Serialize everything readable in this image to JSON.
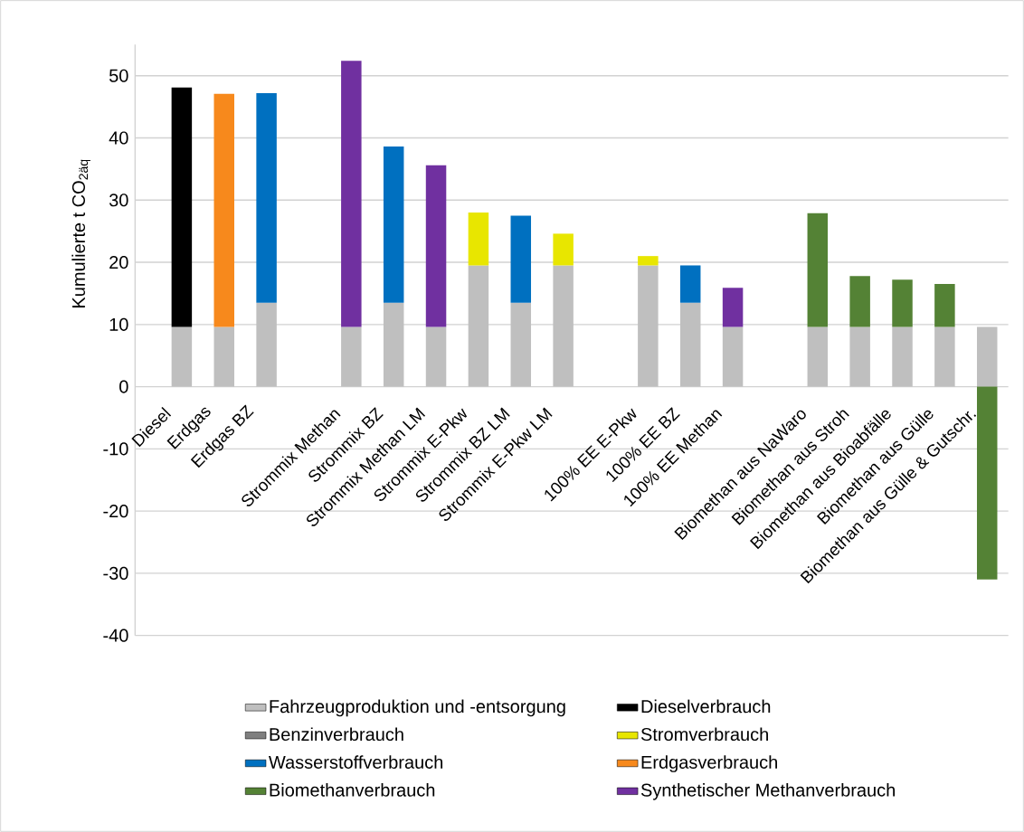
{
  "chart_data": {
    "type": "bar",
    "stacked": true,
    "ylabel": "Kumulierte t CO$_{2äq}$",
    "ylim": [
      -40,
      55
    ],
    "yticks": [
      -40,
      -30,
      -20,
      -10,
      0,
      10,
      20,
      30,
      40,
      50
    ],
    "grid": "y",
    "legend": "bottom",
    "categories": [
      "Diesel",
      "Erdgas",
      "Erdgas BZ",
      null,
      "Strommix Methan",
      "Strommix BZ",
      "Strommix Methan LM",
      "Strommix E-Pkw",
      "Strommix BZ LM",
      "Strommix E-Pkw LM",
      null,
      "100% EE E-Pkw",
      "100% EE BZ",
      "100% EE Methan",
      null,
      "Biomethan aus NaWaro",
      "Biomethan aus Stroh",
      "Biomethan aus Bioabfälle",
      "Biomethan aus Gülle",
      "Biomethan aus Gülle & Gutschr."
    ],
    "series": [
      {
        "name": "Fahrzeugproduktion und -entsorgung",
        "color": "#bfbfbf",
        "values": [
          9.6,
          9.6,
          13.5,
          null,
          9.6,
          13.5,
          9.6,
          19.5,
          13.5,
          19.5,
          null,
          19.5,
          13.5,
          9.6,
          null,
          9.6,
          9.6,
          9.6,
          9.6,
          9.6
        ]
      },
      {
        "name": "Dieselverbrauch",
        "color": "#000000",
        "values": [
          38.5,
          null,
          null,
          null,
          null,
          null,
          null,
          null,
          null,
          null,
          null,
          null,
          null,
          null,
          null,
          null,
          null,
          null,
          null,
          null
        ]
      },
      {
        "name": "Benzinverbrauch",
        "color": "#7f7f7f",
        "values": [
          null,
          null,
          null,
          null,
          null,
          null,
          null,
          null,
          null,
          null,
          null,
          null,
          null,
          null,
          null,
          null,
          null,
          null,
          null,
          null
        ]
      },
      {
        "name": "Stromverbrauch",
        "color": "#e8e600",
        "values": [
          null,
          null,
          null,
          null,
          null,
          null,
          null,
          8.5,
          null,
          5.1,
          null,
          1.5,
          null,
          null,
          null,
          null,
          null,
          null,
          null,
          null
        ]
      },
      {
        "name": "Wasserstoffverbrauch",
        "color": "#0070c0",
        "values": [
          null,
          null,
          33.7,
          null,
          null,
          25.1,
          null,
          null,
          14.0,
          null,
          null,
          null,
          6.0,
          null,
          null,
          null,
          null,
          null,
          null,
          null
        ]
      },
      {
        "name": "Erdgasverbrauch",
        "color": "#f7891c",
        "values": [
          null,
          37.5,
          null,
          null,
          null,
          null,
          null,
          null,
          null,
          null,
          null,
          null,
          null,
          null,
          null,
          null,
          null,
          null,
          null,
          null
        ]
      },
      {
        "name": "Biomethanverbrauch",
        "color": "#548235",
        "values": [
          null,
          null,
          null,
          null,
          null,
          null,
          null,
          null,
          null,
          null,
          null,
          null,
          null,
          null,
          null,
          18.3,
          8.2,
          7.6,
          6.9,
          -31
        ]
      },
      {
        "name": "Synthetischer Methanverbrauch",
        "color": "#7030a0",
        "values": [
          null,
          null,
          null,
          null,
          42.8,
          null,
          26.0,
          null,
          null,
          null,
          null,
          null,
          null,
          6.3,
          null,
          null,
          null,
          null,
          null,
          null
        ]
      }
    ]
  }
}
